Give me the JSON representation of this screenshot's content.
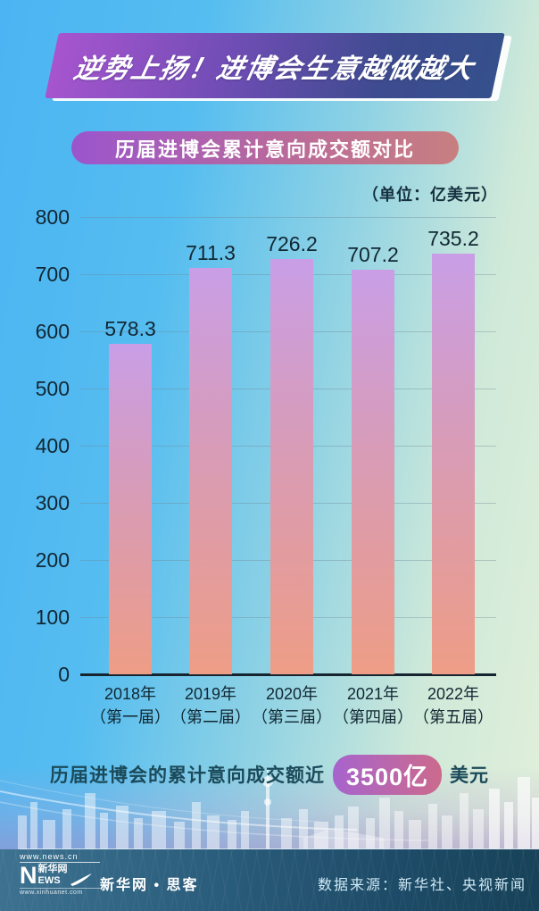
{
  "title": "逆势上扬！进博会生意越做越大",
  "subtitle": "历届进博会累计意向成交额对比",
  "unit_label": "（单位：亿美元）",
  "chart_data": {
    "type": "bar",
    "title": "历届进博会累计意向成交额对比",
    "unit": "亿美元",
    "categories": [
      {
        "year": "2018年",
        "session": "（第一届）"
      },
      {
        "year": "2019年",
        "session": "（第二届）"
      },
      {
        "year": "2020年",
        "session": "（第三届）"
      },
      {
        "year": "2021年",
        "session": "（第四届）"
      },
      {
        "year": "2022年",
        "session": "（第五届）"
      }
    ],
    "values": [
      578.3,
      711.3,
      726.2,
      707.2,
      735.2
    ],
    "value_labels": [
      "578.3",
      "711.3",
      "726.2",
      "707.2",
      "735.2"
    ],
    "ylim": [
      0,
      800
    ],
    "yticks": [
      800,
      700,
      600,
      500,
      400,
      300,
      200,
      100,
      0
    ],
    "grid": true,
    "legend": "none"
  },
  "statement": {
    "prefix": "历届进博会的累计意向成交额近",
    "highlight": "3500亿",
    "suffix": "美元"
  },
  "footer": {
    "logo": {
      "top_url": "www.news.cn",
      "n": "N",
      "cn": "新华网",
      "ews": "EWS",
      "bottom_url": "www.xinhuanet.com"
    },
    "brand": "新华网 • 思客",
    "source": "数据来源：新华社、央视新闻"
  },
  "colors": {
    "background_left": "#4cb4f2",
    "background_right": "#e2f0da",
    "banner_gradient_start": "#a855cf",
    "banner_gradient_end": "#35508c",
    "subtitle_gradient_start": "#9b55cd",
    "subtitle_gradient_end": "#c87f80",
    "bar_top": "#c99ee6",
    "bar_bottom": "#ee9d86",
    "highlight_gradient_start": "#a764cd",
    "highlight_gradient_end": "#cc6a8c",
    "axis_text": "#112733",
    "statement_text": "#1b4a5a",
    "footer_background": "#1d4a66",
    "source_text": "#cfe9f5"
  }
}
